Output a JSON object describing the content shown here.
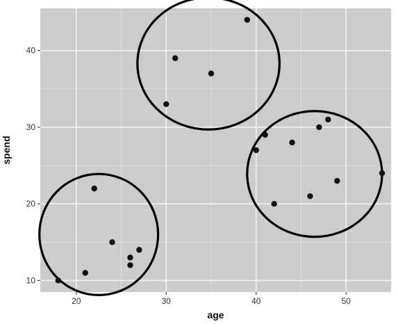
{
  "chart_data": {
    "type": "scatter",
    "xlabel": "age",
    "ylabel": "spend",
    "xlim": [
      16,
      55
    ],
    "ylim": [
      8.5,
      45.5
    ],
    "x_ticks": [
      20,
      30,
      40,
      50
    ],
    "y_ticks": [
      10,
      20,
      30,
      40
    ],
    "grid": true,
    "legend": "none",
    "points": [
      {
        "x": 18,
        "y": 10
      },
      {
        "x": 21,
        "y": 11
      },
      {
        "x": 22,
        "y": 22
      },
      {
        "x": 24,
        "y": 15
      },
      {
        "x": 26,
        "y": 13
      },
      {
        "x": 26,
        "y": 12
      },
      {
        "x": 27,
        "y": 14
      },
      {
        "x": 30,
        "y": 33
      },
      {
        "x": 31,
        "y": 39
      },
      {
        "x": 35,
        "y": 37
      },
      {
        "x": 39,
        "y": 44
      },
      {
        "x": 40,
        "y": 27
      },
      {
        "x": 41,
        "y": 29
      },
      {
        "x": 42,
        "y": 20
      },
      {
        "x": 44,
        "y": 28
      },
      {
        "x": 46,
        "y": 21
      },
      {
        "x": 47,
        "y": 30
      },
      {
        "x": 48,
        "y": 31
      },
      {
        "x": 49,
        "y": 23
      },
      {
        "x": 54,
        "y": 24
      }
    ],
    "clusters": [
      {
        "center_x": 22.5,
        "center_y": 16.0,
        "radius_x": 6.6,
        "radius_y": 7.9
      },
      {
        "center_x": 34.7,
        "center_y": 38.3,
        "radius_x": 7.9,
        "radius_y": 8.6
      },
      {
        "center_x": 46.5,
        "center_y": 23.9,
        "radius_x": 7.5,
        "radius_y": 8.2
      }
    ]
  }
}
